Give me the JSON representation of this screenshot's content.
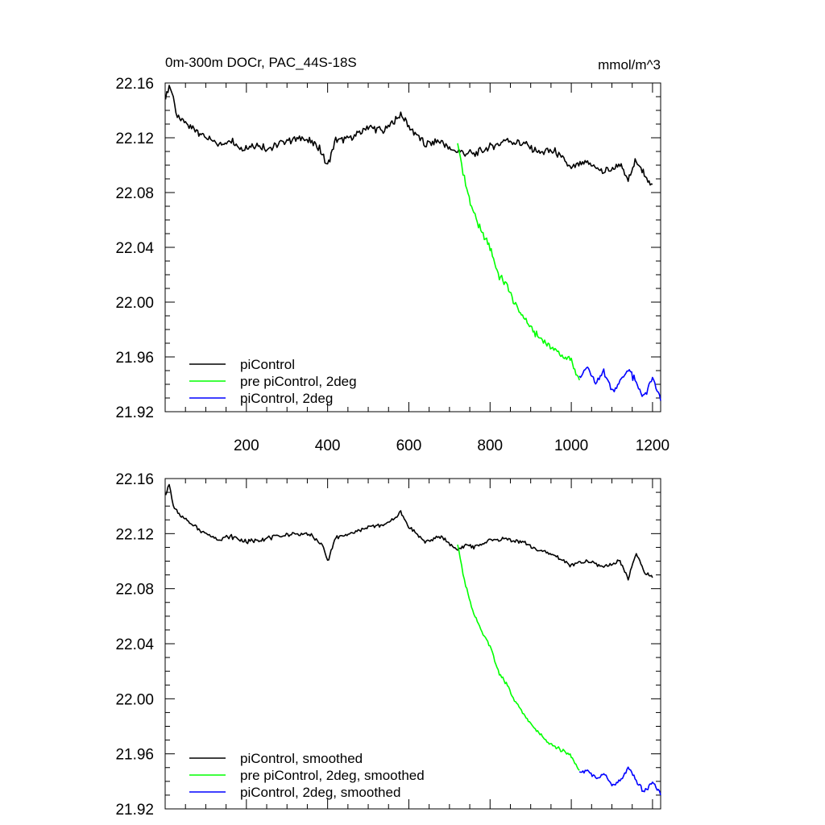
{
  "chart_data": [
    {
      "type": "line",
      "title": "0m-300m DOCr, PAC_44S-18S",
      "units": "mmol/m^3",
      "xlim": [
        0,
        1220
      ],
      "ylim": [
        21.92,
        22.16
      ],
      "x_ticks": [
        200,
        400,
        600,
        800,
        1000,
        1200
      ],
      "x_tick_labels": [
        "200",
        "400",
        "600",
        "800",
        "1000",
        "1200"
      ],
      "y_ticks": [
        21.92,
        21.96,
        22.0,
        22.04,
        22.08,
        22.12,
        22.16
      ],
      "y_tick_labels": [
        "21.92",
        "21.96",
        "22.00",
        "22.04",
        "22.08",
        "22.12",
        "22.16"
      ],
      "legend_position": "bottom-left",
      "series": [
        {
          "name": "piControl",
          "color": "#000000",
          "x": [
            1,
            10,
            20,
            30,
            50,
            80,
            100,
            130,
            160,
            190,
            220,
            260,
            300,
            340,
            380,
            390,
            400,
            420,
            460,
            500,
            540,
            580,
            600,
            640,
            680,
            700,
            720,
            760,
            800,
            840,
            880,
            920,
            960,
            1000,
            1040,
            1080,
            1120,
            1140,
            1160,
            1180,
            1200
          ],
          "values": [
            22.148,
            22.157,
            22.15,
            22.135,
            22.13,
            22.125,
            22.12,
            22.115,
            22.118,
            22.112,
            22.115,
            22.112,
            22.118,
            22.12,
            22.113,
            22.105,
            22.1,
            22.118,
            22.12,
            22.128,
            22.125,
            22.137,
            22.128,
            22.115,
            22.118,
            22.112,
            22.11,
            22.108,
            22.113,
            22.118,
            22.116,
            22.11,
            22.11,
            22.098,
            22.102,
            22.095,
            22.1,
            22.088,
            22.105,
            22.092,
            22.086
          ]
        },
        {
          "name": "pre piControl, 2deg",
          "color": "#00ff00",
          "x": [
            720,
            730,
            740,
            760,
            780,
            800,
            820,
            840,
            860,
            880,
            900,
            920,
            940,
            960,
            980,
            1000,
            1020
          ],
          "values": [
            22.116,
            22.1,
            22.085,
            22.065,
            22.05,
            22.04,
            22.02,
            22.013,
            22.0,
            21.99,
            21.982,
            21.974,
            21.97,
            21.965,
            21.96,
            21.957,
            21.943
          ]
        },
        {
          "name": "piControl, 2deg",
          "color": "#0000ff",
          "x": [
            1020,
            1040,
            1060,
            1080,
            1100,
            1120,
            1140,
            1160,
            1180,
            1200,
            1220
          ],
          "values": [
            21.946,
            21.952,
            21.94,
            21.95,
            21.935,
            21.942,
            21.952,
            21.94,
            21.93,
            21.945,
            21.928
          ]
        }
      ]
    },
    {
      "type": "line",
      "title": "",
      "xlim": [
        0,
        1220
      ],
      "ylim": [
        21.92,
        22.16
      ],
      "y_ticks": [
        21.92,
        21.96,
        22.0,
        22.04,
        22.08,
        22.12,
        22.16
      ],
      "y_tick_labels": [
        "21.92",
        "21.96",
        "22.00",
        "22.04",
        "22.08",
        "22.12",
        "22.16"
      ],
      "legend_position": "bottom-left",
      "series": [
        {
          "name": "piControl, smoothed",
          "color": "#000000",
          "x": [
            1,
            10,
            20,
            40,
            60,
            80,
            100,
            130,
            160,
            200,
            240,
            280,
            320,
            360,
            390,
            400,
            420,
            460,
            500,
            540,
            580,
            600,
            640,
            680,
            720,
            740,
            760,
            800,
            840,
            880,
            920,
            960,
            1000,
            1040,
            1080,
            1120,
            1140,
            1160,
            1180,
            1200
          ],
          "values": [
            22.148,
            22.155,
            22.14,
            22.132,
            22.128,
            22.124,
            22.12,
            22.116,
            22.118,
            22.114,
            22.116,
            22.118,
            22.12,
            22.119,
            22.11,
            22.1,
            22.117,
            22.12,
            22.125,
            22.126,
            22.135,
            22.125,
            22.114,
            22.118,
            22.108,
            22.112,
            22.11,
            22.115,
            22.116,
            22.114,
            22.108,
            22.104,
            22.097,
            22.1,
            22.096,
            22.1,
            22.087,
            22.106,
            22.092,
            22.088
          ]
        },
        {
          "name": "pre piControl, 2deg, smoothed",
          "color": "#00ff00",
          "x": [
            720,
            730,
            740,
            760,
            780,
            800,
            820,
            840,
            860,
            880,
            900,
            920,
            940,
            960,
            980,
            1000,
            1020
          ],
          "values": [
            22.112,
            22.097,
            22.082,
            22.062,
            22.048,
            22.038,
            22.02,
            22.011,
            21.999,
            21.99,
            21.982,
            21.975,
            21.97,
            21.965,
            21.962,
            21.958,
            21.948
          ]
        },
        {
          "name": "piControl, 2deg, smoothed",
          "color": "#0000ff",
          "x": [
            1020,
            1040,
            1060,
            1080,
            1100,
            1120,
            1140,
            1160,
            1180,
            1200,
            1220
          ],
          "values": [
            21.947,
            21.948,
            21.942,
            21.946,
            21.937,
            21.94,
            21.95,
            21.94,
            21.932,
            21.94,
            21.93
          ]
        }
      ]
    }
  ]
}
